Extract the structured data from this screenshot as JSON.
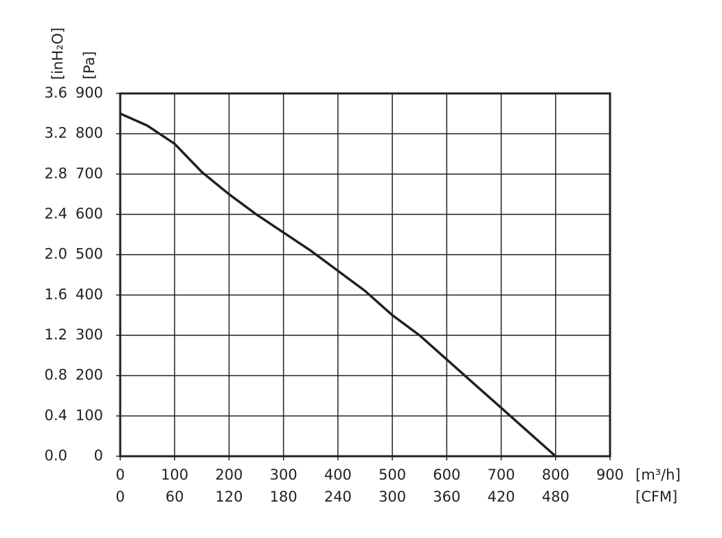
{
  "chart_data": {
    "type": "line",
    "x": [
      0,
      50,
      100,
      150,
      200,
      250,
      300,
      350,
      400,
      450,
      500,
      550,
      600,
      650,
      700,
      750,
      800
    ],
    "values": [
      850,
      820,
      775,
      705,
      650,
      600,
      555,
      510,
      460,
      410,
      350,
      300,
      240,
      180,
      120,
      60,
      0
    ],
    "color": "#231f20",
    "xlim": [
      0,
      900
    ],
    "xticks": [
      0,
      100,
      200,
      300,
      400,
      500,
      600,
      700,
      800,
      900
    ],
    "xlabel": "[m³/h]",
    "x2lim": [
      0,
      540
    ],
    "x2ticks": [
      0,
      60,
      120,
      180,
      240,
      300,
      360,
      420,
      480
    ],
    "x2label": "[CFM]",
    "ylim": [
      0,
      900
    ],
    "yticks": [
      0,
      100,
      200,
      300,
      400,
      500,
      600,
      700,
      800,
      900
    ],
    "ylabel": "[Pa]",
    "y2lim": [
      0,
      3.6
    ],
    "y2ticks": [
      {
        "value": 0,
        "label": "0.0"
      },
      0.4,
      0.8,
      1.2,
      1.6,
      {
        "value": 2,
        "label": "2.0"
      },
      2.4,
      2.8,
      3.2,
      3.6
    ],
    "y2label": "[inH₂O]",
    "grid": true
  }
}
